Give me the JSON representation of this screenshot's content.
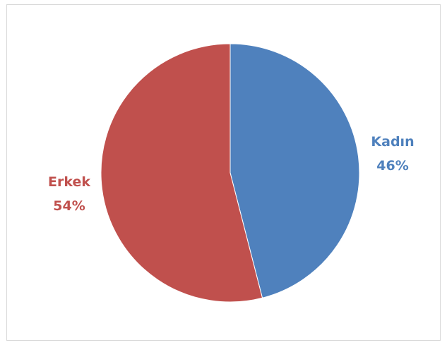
{
  "chart_data": {
    "type": "pie",
    "title": "",
    "slices": [
      {
        "label": "Kadın",
        "value": 46,
        "value_label": "46%",
        "color": "#4f81bd"
      },
      {
        "label": "Erkek",
        "value": 54,
        "value_label": "54%",
        "color": "#c0504d"
      }
    ],
    "start_angle": "12 o'clock",
    "direction": "clockwise",
    "legend": "none",
    "data_labels": "outside, category and percentage"
  }
}
